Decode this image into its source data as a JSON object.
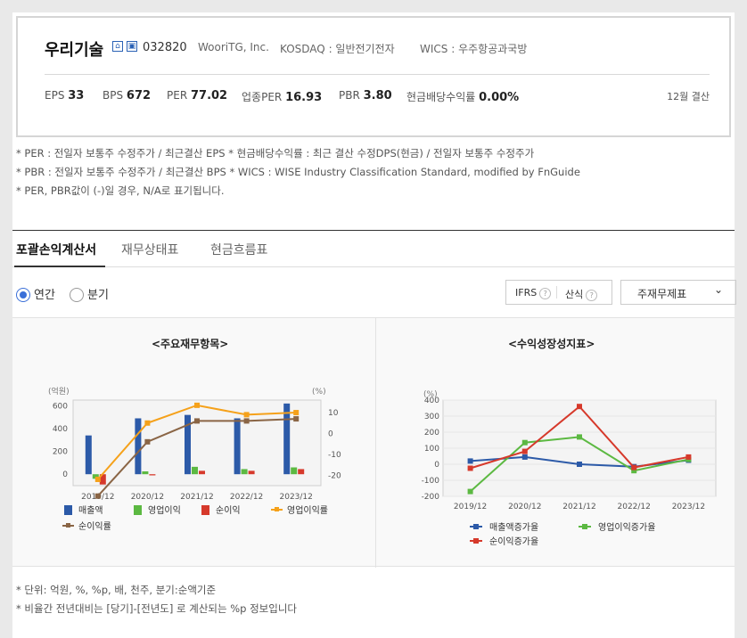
{
  "company": {
    "name": "우리기술",
    "code": "032820",
    "eng_name": "WooriTG, Inc.",
    "market": "KOSDAQ : 일반전기전자",
    "wics": "WICS : 우주항공과국방"
  },
  "metrics": [
    {
      "label": "EPS",
      "value": "33"
    },
    {
      "label": "BPS",
      "value": "672"
    },
    {
      "label": "PER",
      "value": "77.02"
    },
    {
      "label": "업종PER",
      "value": "16.93"
    },
    {
      "label": "PBR",
      "value": "3.80"
    },
    {
      "label": "현금배당수익률",
      "value": "0.00%"
    }
  ],
  "settlement": "12월 결산",
  "notes": [
    "* PER : 전일자 보통주 수정주가 / 최근결산 EPS * 현금배당수익률 : 최근 결산 수정DPS(현금) / 전일자 보통주 수정주가",
    "* PBR : 전일자 보통주 수정주가 / 최근결산 BPS * WICS : WISE Industry Classification Standard, modified by FnGuide",
    "* PER, PBR값이 (-)일 경우, N/A로 표기됩니다."
  ],
  "tabs": [
    "포괄손익계산서",
    "재무상태표",
    "현금흐름표"
  ],
  "radios": {
    "annual": "연간",
    "quarter": "분기"
  },
  "options": {
    "ifrs": "IFRS",
    "calc": "산식",
    "help": "?"
  },
  "select": {
    "value": "주재무제표",
    "chevron": "⌄"
  },
  "footnotes": [
    "* 단위: 억원, %, %p, 배, 천주, 분기:순액기준",
    "* 비율간 전년대비는 [당기]-[전년도] 로 계산되는 %p 정보입니다"
  ],
  "colors": {
    "revenue": "#2c5aa8",
    "op_income": "#5cb942",
    "net_income": "#d6392b",
    "op_margin": "#f5a11a",
    "net_margin": "#8a6545",
    "accent": "#3a6fd8"
  },
  "chart_data": [
    {
      "type": "bar",
      "title": "<주요재무항목>",
      "left_unit": "(억원)",
      "right_unit": "(%)",
      "categories": [
        "2019/12",
        "2020/12",
        "2021/12",
        "2022/12",
        "2023/12"
      ],
      "ylim": [
        -100,
        650
      ],
      "y_ticks": [
        0,
        200,
        400,
        600
      ],
      "y2lim": [
        -25,
        16
      ],
      "y2_ticks": [
        10,
        0,
        -10,
        -20
      ],
      "series": [
        {
          "name": "매출액",
          "kind": "bar",
          "axis": "left",
          "values": [
            340,
            490,
            520,
            490,
            620
          ]
        },
        {
          "name": "영업이익",
          "kind": "bar",
          "axis": "left",
          "values": [
            -40,
            25,
            65,
            45,
            60
          ]
        },
        {
          "name": "순이익",
          "kind": "bar",
          "axis": "left",
          "values": [
            -90,
            -10,
            30,
            30,
            45
          ]
        },
        {
          "name": "영업이익률",
          "kind": "line",
          "axis": "right",
          "values": [
            -22,
            5,
            13.5,
            9,
            10
          ]
        },
        {
          "name": "순이익률",
          "kind": "line",
          "axis": "right",
          "values": [
            -30,
            -4,
            6,
            6,
            7
          ]
        }
      ]
    },
    {
      "type": "line",
      "title": "<수익성장성지표>",
      "left_unit": "(%)",
      "categories": [
        "2019/12",
        "2020/12",
        "2021/12",
        "2022/12",
        "2023/12"
      ],
      "ylim": [
        -200,
        400
      ],
      "y_ticks": [
        400,
        300,
        200,
        100,
        0,
        -100,
        -200
      ],
      "series": [
        {
          "name": "매출액증가율",
          "values": [
            20,
            45,
            0,
            -15,
            25
          ]
        },
        {
          "name": "영업이익증가율",
          "values": [
            -170,
            135,
            170,
            -40,
            30
          ]
        },
        {
          "name": "순이익증가율",
          "values": [
            -25,
            80,
            360,
            -20,
            45
          ]
        }
      ]
    }
  ]
}
